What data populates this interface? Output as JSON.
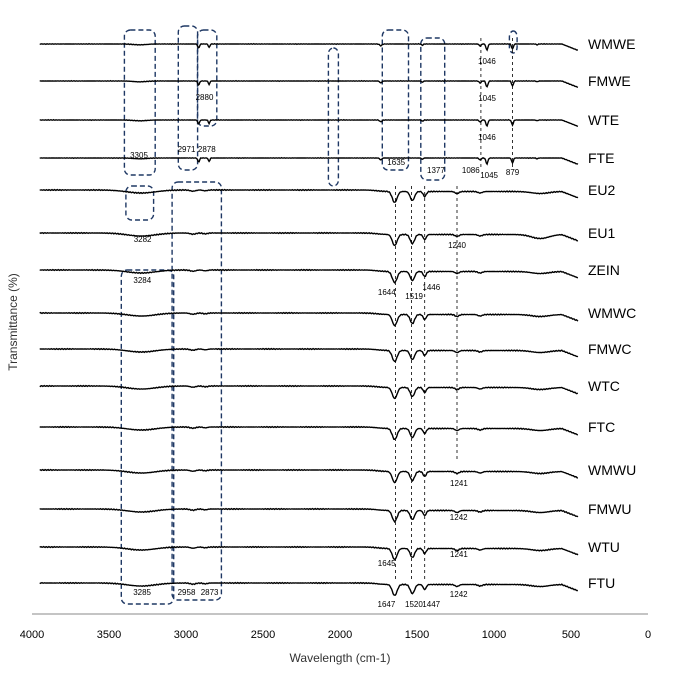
{
  "chart_data": {
    "type": "line",
    "xlabel": "Wavelength (cm-1)",
    "ylabel": "Transmittance (%)",
    "xlim": [
      4000,
      0
    ],
    "x_reversed": true,
    "grid": false,
    "x_ticks": [
      "4000",
      "3500",
      "3000",
      "2500",
      "2000",
      "1500",
      "1000",
      "500",
      "0"
    ],
    "x_tick_values": [
      4000,
      3500,
      3000,
      2500,
      2000,
      1500,
      1000,
      500,
      0
    ],
    "series": [
      {
        "name": "WMWE",
        "family": "wax"
      },
      {
        "name": "FMWE",
        "family": "wax"
      },
      {
        "name": "WTE",
        "family": "wax"
      },
      {
        "name": "FTE",
        "family": "wax"
      },
      {
        "name": "EU2",
        "family": "protein"
      },
      {
        "name": "EU1",
        "family": "protein"
      },
      {
        "name": "ZEIN",
        "family": "protein"
      },
      {
        "name": "WMWC",
        "family": "protein"
      },
      {
        "name": "FMWC",
        "family": "protein"
      },
      {
        "name": "WTC",
        "family": "protein"
      },
      {
        "name": "FTC",
        "family": "protein"
      },
      {
        "name": "WMWU",
        "family": "protein"
      },
      {
        "name": "FMWU",
        "family": "protein"
      },
      {
        "name": "WTU",
        "family": "protein"
      },
      {
        "name": "FTU",
        "family": "protein"
      }
    ],
    "peak_annotations": [
      {
        "series": "WMWE",
        "wavenumber": 1046,
        "text": "1046"
      },
      {
        "series": "FMWE",
        "wavenumber": 2880,
        "text": "2880"
      },
      {
        "series": "FMWE",
        "wavenumber": 1045,
        "text": "1045"
      },
      {
        "series": "WTE",
        "wavenumber": 1046,
        "text": "1046"
      },
      {
        "series": "FTE",
        "wavenumber": 3305,
        "text": "3305"
      },
      {
        "series": "FTE",
        "wavenumber": 2971,
        "text": "2971"
      },
      {
        "series": "FTE",
        "wavenumber": 2878,
        "text": "2878"
      },
      {
        "series": "FTE",
        "wavenumber": 1635,
        "text": "1635"
      },
      {
        "series": "FTE",
        "wavenumber": 1377,
        "text": "1377"
      },
      {
        "series": "FTE",
        "wavenumber": 1086,
        "text": "1086"
      },
      {
        "series": "FTE",
        "wavenumber": 1045,
        "text": "1045"
      },
      {
        "series": "FTE",
        "wavenumber": 879,
        "text": "879"
      },
      {
        "series": "EU1",
        "wavenumber": 3282,
        "text": "3282"
      },
      {
        "series": "EU1",
        "wavenumber": 1240,
        "text": "1240"
      },
      {
        "series": "ZEIN",
        "wavenumber": 3284,
        "text": "3284"
      },
      {
        "series": "ZEIN",
        "wavenumber": 1644,
        "text": "1644"
      },
      {
        "series": "ZEIN",
        "wavenumber": 1519,
        "text": "1519"
      },
      {
        "series": "ZEIN",
        "wavenumber": 1446,
        "text": "1446"
      },
      {
        "series": "WMWU",
        "wavenumber": 1241,
        "text": "1241"
      },
      {
        "series": "FMWU",
        "wavenumber": 1242,
        "text": "1242"
      },
      {
        "series": "WTU",
        "wavenumber": 1645,
        "text": "1645"
      },
      {
        "series": "WTU",
        "wavenumber": 1241,
        "text": "1241"
      },
      {
        "series": "FTU",
        "wavenumber": 3285,
        "text": "3285"
      },
      {
        "series": "FTU",
        "wavenumber": 2958,
        "text": "2958"
      },
      {
        "series": "FTU",
        "wavenumber": 2873,
        "text": "2873"
      },
      {
        "series": "FTU",
        "wavenumber": 1647,
        "text": "1647"
      },
      {
        "series": "FTU",
        "wavenumber": 1520,
        "text": "1520"
      },
      {
        "series": "FTU",
        "wavenumber": 1447,
        "text": "1447"
      },
      {
        "series": "FTU",
        "wavenumber": 1242,
        "text": "1242"
      }
    ],
    "highlight_regions": [
      {
        "from": 3400,
        "to": 3200
      },
      {
        "from": 3050,
        "to": 2925
      },
      {
        "from": 2925,
        "to": 2800
      },
      {
        "from": 2075,
        "to": 2010
      },
      {
        "from": 1725,
        "to": 1555
      },
      {
        "from": 1475,
        "to": 1320
      },
      {
        "from": 900,
        "to": 850
      },
      {
        "from": 3390,
        "to": 3210
      },
      {
        "from": 3090,
        "to": 2770
      },
      {
        "from": 3420,
        "to": 3080
      }
    ],
    "reference_lines": [
      1640,
      1535,
      1450,
      1240,
      1085,
      880
    ]
  },
  "colors": {
    "line": "#000000",
    "box": "#1f3864",
    "axis": "#888888"
  }
}
